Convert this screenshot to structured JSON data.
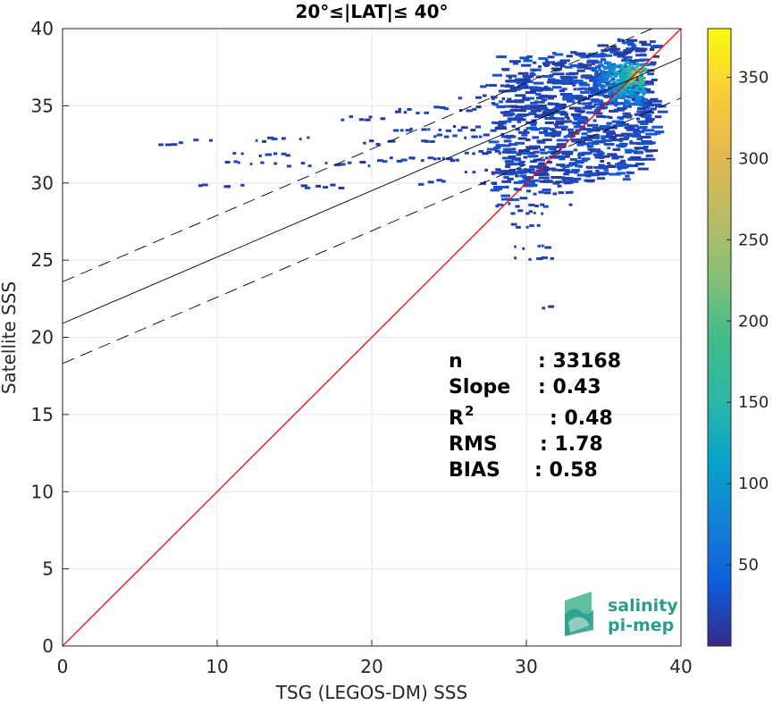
{
  "chart_data": {
    "type": "heatmap",
    "title": "20°≤|LAT|≤ 40°",
    "xlabel": "TSG (LEGOS-DM) SSS",
    "ylabel": "Satellite SSS",
    "xlim": [
      0,
      40
    ],
    "ylim": [
      0,
      40
    ],
    "xticks": [
      "0",
      "10",
      "20",
      "30",
      "40"
    ],
    "yticks": [
      "0",
      "5",
      "10",
      "15",
      "20",
      "25",
      "30",
      "35",
      "40"
    ],
    "grid": true,
    "colorbar": {
      "range": [
        0,
        380
      ],
      "ticks": [
        "50",
        "100",
        "150",
        "200",
        "250",
        "300",
        "350"
      ],
      "colormap": "parula"
    },
    "lines": [
      {
        "role": "identity",
        "slope": 1.0,
        "intercept": 0.0,
        "color": "#ff0000",
        "style": "solid"
      },
      {
        "role": "regression",
        "slope": 0.43,
        "intercept": 20.9,
        "color": "#000000",
        "style": "solid"
      },
      {
        "role": "upper-bound",
        "slope": 0.43,
        "intercept": 23.6,
        "color": "#000000",
        "style": "dashed"
      },
      {
        "role": "lower-bound",
        "slope": 0.43,
        "intercept": 18.3,
        "color": "#000000",
        "style": "dashed"
      }
    ],
    "stats": [
      {
        "label": "n",
        "sup": "",
        "value": ": 33168"
      },
      {
        "label": "Slope",
        "sup": "",
        "value": ": 0.43"
      },
      {
        "label": "R",
        "sup": "2",
        "value": ": 0.48"
      },
      {
        "label": "RMS",
        "sup": "",
        "value": ": 1.78"
      },
      {
        "label": "BIAS",
        "sup": "",
        "value": ": 0.58"
      }
    ],
    "density_cells": [
      {
        "x": 37.2,
        "y": 37.0,
        "count": 370
      },
      {
        "x": 37.0,
        "y": 36.8,
        "count": 300
      },
      {
        "x": 36.8,
        "y": 36.6,
        "count": 230
      },
      {
        "x": 36.9,
        "y": 37.2,
        "count": 250
      },
      {
        "x": 36.6,
        "y": 36.4,
        "count": 180
      },
      {
        "x": 36.4,
        "y": 36.2,
        "count": 160
      },
      {
        "x": 37.1,
        "y": 36.5,
        "count": 200
      },
      {
        "x": 36.7,
        "y": 37.0,
        "count": 190
      },
      {
        "x": 36.2,
        "y": 36.0,
        "count": 140
      },
      {
        "x": 36.0,
        "y": 35.8,
        "count": 120
      },
      {
        "x": 35.8,
        "y": 35.6,
        "count": 110
      },
      {
        "x": 36.5,
        "y": 36.8,
        "count": 150
      },
      {
        "x": 36.3,
        "y": 36.5,
        "count": 130
      },
      {
        "x": 35.6,
        "y": 35.4,
        "count": 95
      },
      {
        "x": 36.1,
        "y": 36.4,
        "count": 115
      },
      {
        "x": 35.9,
        "y": 36.2,
        "count": 100
      },
      {
        "x": 36.8,
        "y": 37.4,
        "count": 140
      },
      {
        "x": 36.4,
        "y": 37.0,
        "count": 120
      },
      {
        "x": 37.3,
        "y": 37.3,
        "count": 260
      }
    ],
    "logo": {
      "line1": "salinity",
      "line2": "pi-mep"
    }
  }
}
